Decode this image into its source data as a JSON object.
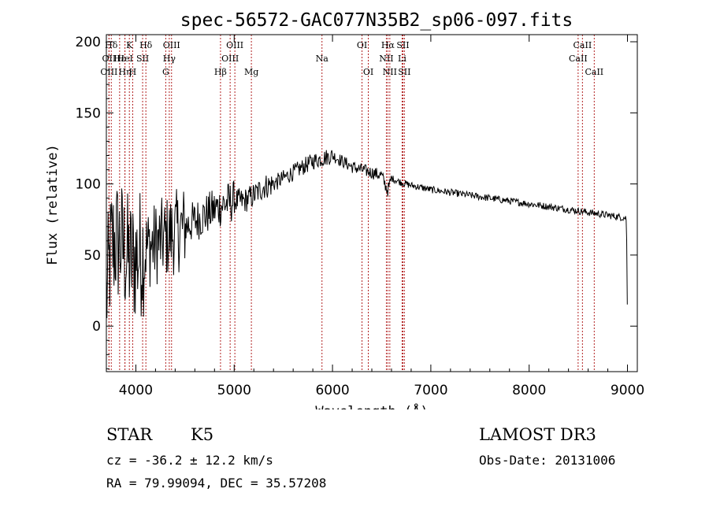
{
  "chart_data": {
    "type": "line",
    "title": "spec-56572-GAC077N35B2_sp06-097.fits",
    "xlabel": "Wavelength (Å)",
    "ylabel": "Flux (relative)",
    "xlim": [
      3700,
      9100
    ],
    "ylim": [
      -32,
      205
    ],
    "xticks": [
      4000,
      5000,
      6000,
      7000,
      8000,
      9000
    ],
    "yticks": [
      0,
      50,
      100,
      150,
      200
    ],
    "line_color": "#000000",
    "marker_color": "#b22222",
    "spectrum_anchors": {
      "x": [
        3700,
        3750,
        3800,
        3850,
        3900,
        3950,
        4000,
        4050,
        4100,
        4200,
        4300,
        4400,
        4500,
        4600,
        4700,
        4800,
        4900,
        5000,
        5100,
        5200,
        5300,
        5400,
        5500,
        5600,
        5700,
        5800,
        5900,
        6000,
        6100,
        6200,
        6300,
        6400,
        6500,
        6560,
        6600,
        6700,
        6800,
        7000,
        7200,
        7400,
        7600,
        7800,
        8000,
        8200,
        8400,
        8600,
        8800,
        8990,
        9000
      ],
      "y": [
        20,
        55,
        60,
        58,
        50,
        45,
        48,
        52,
        55,
        58,
        62,
        66,
        70,
        74,
        78,
        82,
        86,
        88,
        88,
        92,
        98,
        100,
        104,
        108,
        112,
        116,
        118,
        120,
        116,
        112,
        110,
        108,
        106,
        95,
        104,
        101,
        99,
        96,
        94,
        92,
        90,
        88,
        86,
        84,
        82,
        80,
        78,
        76,
        0
      ]
    },
    "lines": [
      {
        "label": "Hδ",
        "wavelength": 3750,
        "row": 1
      },
      {
        "label": "OII",
        "wavelength": 3727,
        "row": 2
      },
      {
        "label": "OIII",
        "wavelength": 3727,
        "row": 3
      },
      {
        "label": "K",
        "wavelength": 3934,
        "row": 1
      },
      {
        "label": "Hε",
        "wavelength": 3835,
        "row": 2
      },
      {
        "label": "HeI",
        "wavelength": 3889,
        "row": 2
      },
      {
        "label": "Hη",
        "wavelength": 3889,
        "row": 3
      },
      {
        "label": "H",
        "wavelength": 3968,
        "row": 3
      },
      {
        "label": "SII",
        "wavelength": 4069,
        "row": 2
      },
      {
        "label": "Hδ",
        "wavelength": 4102,
        "row": 1
      },
      {
        "label": "OIII",
        "wavelength": 4363,
        "row": 1
      },
      {
        "label": "Hγ",
        "wavelength": 4340,
        "row": 2
      },
      {
        "label": "G",
        "wavelength": 4304,
        "row": 3
      },
      {
        "label": "Hβ",
        "wavelength": 4861,
        "row": 3
      },
      {
        "label": "OIII",
        "wavelength": 5007,
        "row": 1
      },
      {
        "label": "OIII",
        "wavelength": 4959,
        "row": 2
      },
      {
        "label": "Mg",
        "wavelength": 5175,
        "row": 3
      },
      {
        "label": "Na",
        "wavelength": 5893,
        "row": 2
      },
      {
        "label": "OI",
        "wavelength": 6300,
        "row": 1
      },
      {
        "label": "OI",
        "wavelength": 6364,
        "row": 3
      },
      {
        "label": "Hα",
        "wavelength": 6563,
        "row": 1
      },
      {
        "label": "NII",
        "wavelength": 6548,
        "row": 2
      },
      {
        "label": "NII",
        "wavelength": 6583,
        "row": 3
      },
      {
        "label": "SII",
        "wavelength": 6716,
        "row": 1
      },
      {
        "label": "Li",
        "wavelength": 6708,
        "row": 2
      },
      {
        "label": "SII",
        "wavelength": 6731,
        "row": 3
      },
      {
        "label": "CaII",
        "wavelength": 8542,
        "row": 1
      },
      {
        "label": "CaII",
        "wavelength": 8498,
        "row": 2
      },
      {
        "label": "CaII",
        "wavelength": 8662,
        "row": 3
      }
    ]
  },
  "info": {
    "object_class": "STAR",
    "subclass": "K5",
    "survey": "LAMOST DR3",
    "redshift": "cz = -36.2 ± 12.2 km/s",
    "obs_date": "Obs-Date: 20131006",
    "coords": "RA =  79.99094, DEC =  35.57208"
  }
}
